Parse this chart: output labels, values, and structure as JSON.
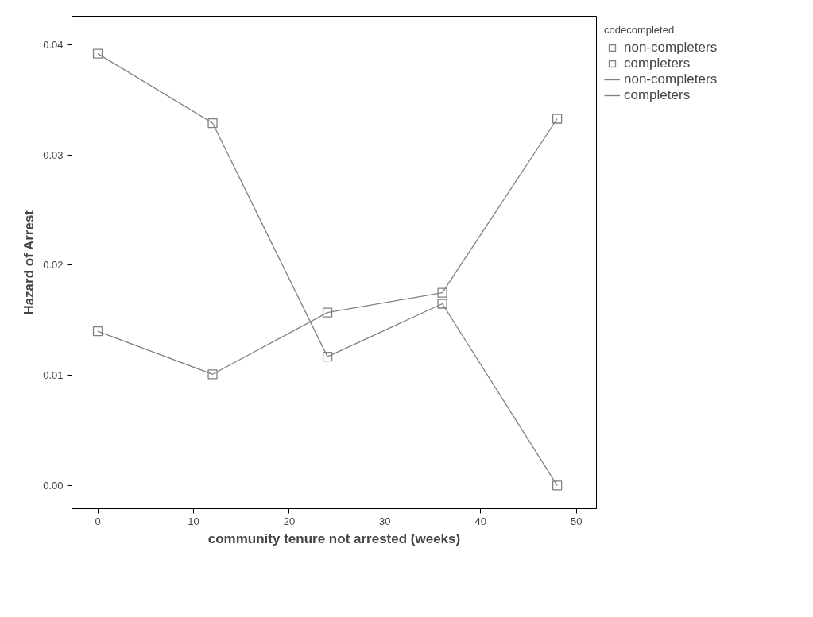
{
  "chart_data": {
    "type": "line",
    "xlabel": "community tenure not arrested (weeks)",
    "ylabel": "Hazard of Arrest",
    "legend_title": "codecompleted",
    "x": [
      0,
      12,
      24,
      36,
      48
    ],
    "series": [
      {
        "name": "non-completers",
        "color": "#808080",
        "values": [
          0.0392,
          0.0329,
          0.0117,
          0.0165,
          0.0
        ]
      },
      {
        "name": "completers",
        "color": "#808080",
        "values": [
          0.014,
          0.0101,
          0.0157,
          0.0175,
          0.0333
        ]
      }
    ],
    "xlim": [
      -2.7,
      52.1
    ],
    "ylim": [
      -0.0021,
      0.0426
    ],
    "xticks": [
      0,
      10,
      20,
      30,
      40,
      50
    ],
    "yticks": [
      {
        "value": 0,
        "label": "0.00"
      },
      {
        "value": 0.01,
        "label": "0.01"
      },
      {
        "value": 0.02,
        "label": "0.02"
      },
      {
        "value": 0.03,
        "label": "0.03"
      },
      {
        "value": 0.04,
        "label": "0.04"
      }
    ],
    "marker": "square",
    "line_style": "solid",
    "grid": false,
    "legend": "top right"
  }
}
